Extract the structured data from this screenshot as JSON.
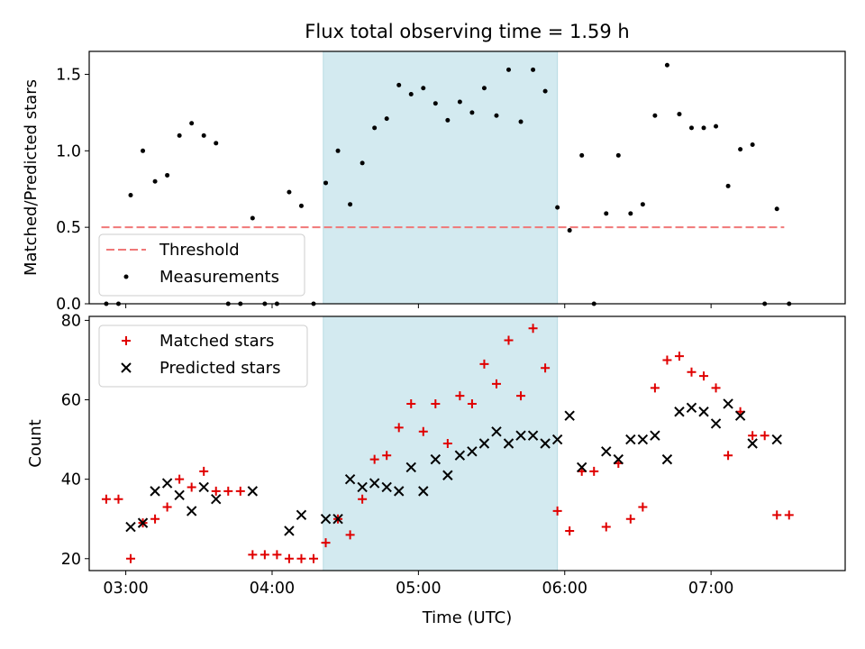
{
  "title": "Flux total observing time = 1.59 h",
  "colors": {
    "threshold": "#f07878",
    "measurement": "#000000",
    "matched": "#e00000",
    "predicted": "#000000",
    "highlight": "#d3eaf0"
  },
  "chart_data": [
    {
      "type": "scatter",
      "ylabel": "Matched/Predicted stars",
      "xlim": [
        "02:45",
        "07:55"
      ],
      "ylim": [
        0,
        1.65
      ],
      "yticks": [
        0.0,
        0.5,
        1.0,
        1.5
      ],
      "ytick_labels": [
        "0.0",
        "0.5",
        "1.0",
        "1.5"
      ],
      "highlight": {
        "start": "04:21",
        "end": "05:57"
      },
      "legend": {
        "placement": "lower-left",
        "entries": [
          "Threshold",
          "Measurements"
        ]
      },
      "threshold": {
        "name": "Threshold",
        "y": 0.5,
        "x_start": "02:50",
        "x_end": "07:30"
      },
      "series": [
        {
          "name": "Measurements",
          "points": [
            [
              "02:52",
              0
            ],
            [
              "02:57",
              0
            ],
            [
              "03:02",
              0.71
            ],
            [
              "03:07",
              1.0
            ],
            [
              "03:12",
              0.8
            ],
            [
              "03:17",
              0.84
            ],
            [
              "03:22",
              1.1
            ],
            [
              "03:27",
              1.18
            ],
            [
              "03:32",
              1.1
            ],
            [
              "03:37",
              1.05
            ],
            [
              "03:42",
              0
            ],
            [
              "03:47",
              0
            ],
            [
              "03:52",
              0.56
            ],
            [
              "03:57",
              0
            ],
            [
              "04:02",
              0
            ],
            [
              "04:07",
              0.73
            ],
            [
              "04:12",
              0.64
            ],
            [
              "04:17",
              0
            ],
            [
              "04:22",
              0.79
            ],
            [
              "04:27",
              1.0
            ],
            [
              "04:32",
              0.65
            ],
            [
              "04:37",
              0.92
            ],
            [
              "04:42",
              1.15
            ],
            [
              "04:47",
              1.21
            ],
            [
              "04:52",
              1.43
            ],
            [
              "04:57",
              1.37
            ],
            [
              "05:02",
              1.41
            ],
            [
              "05:07",
              1.31
            ],
            [
              "05:12",
              1.2
            ],
            [
              "05:17",
              1.32
            ],
            [
              "05:22",
              1.25
            ],
            [
              "05:27",
              1.41
            ],
            [
              "05:32",
              1.23
            ],
            [
              "05:37",
              1.53
            ],
            [
              "05:42",
              1.19
            ],
            [
              "05:47",
              1.53
            ],
            [
              "05:52",
              1.39
            ],
            [
              "05:57",
              0.63
            ],
            [
              "06:02",
              0.48
            ],
            [
              "06:07",
              0.97
            ],
            [
              "06:12",
              0
            ],
            [
              "06:17",
              0.59
            ],
            [
              "06:22",
              0.97
            ],
            [
              "06:27",
              0.59
            ],
            [
              "06:32",
              0.65
            ],
            [
              "06:37",
              1.23
            ],
            [
              "06:42",
              1.56
            ],
            [
              "06:47",
              1.24
            ],
            [
              "06:52",
              1.15
            ],
            [
              "06:57",
              1.15
            ],
            [
              "07:02",
              1.16
            ],
            [
              "07:07",
              0.77
            ],
            [
              "07:12",
              1.01
            ],
            [
              "07:17",
              1.04
            ],
            [
              "07:22",
              0
            ],
            [
              "07:27",
              0.62
            ],
            [
              "07:32",
              0
            ]
          ]
        }
      ]
    },
    {
      "type": "scatter",
      "xlabel": "Time (UTC)",
      "ylabel": "Count",
      "xlim": [
        "02:45",
        "07:55"
      ],
      "ylim": [
        17,
        81
      ],
      "xticks": [
        "03:00",
        "04:00",
        "05:00",
        "06:00",
        "07:00"
      ],
      "xtick_labels": [
        "03:00",
        "04:00",
        "05:00",
        "06:00",
        "07:00"
      ],
      "yticks": [
        20,
        40,
        60,
        80
      ],
      "ytick_labels": [
        "20",
        "40",
        "60",
        "80"
      ],
      "highlight": {
        "start": "04:21",
        "end": "05:57"
      },
      "legend": {
        "placement": "top-left",
        "entries": [
          "Matched stars",
          "Predicted stars"
        ]
      },
      "series": [
        {
          "name": "Matched stars",
          "marker": "plus",
          "points": [
            [
              "02:52",
              35
            ],
            [
              "02:57",
              35
            ],
            [
              "03:02",
              20
            ],
            [
              "03:07",
              29
            ],
            [
              "03:12",
              30
            ],
            [
              "03:17",
              33
            ],
            [
              "03:22",
              40
            ],
            [
              "03:27",
              38
            ],
            [
              "03:32",
              42
            ],
            [
              "03:37",
              37
            ],
            [
              "03:42",
              37
            ],
            [
              "03:47",
              37
            ],
            [
              "03:52",
              21
            ],
            [
              "03:57",
              21
            ],
            [
              "04:02",
              21
            ],
            [
              "04:07",
              20
            ],
            [
              "04:12",
              20
            ],
            [
              "04:17",
              20
            ],
            [
              "04:22",
              24
            ],
            [
              "04:27",
              30
            ],
            [
              "04:32",
              26
            ],
            [
              "04:37",
              35
            ],
            [
              "04:42",
              45
            ],
            [
              "04:47",
              46
            ],
            [
              "04:52",
              53
            ],
            [
              "04:57",
              59
            ],
            [
              "05:02",
              52
            ],
            [
              "05:07",
              59
            ],
            [
              "05:12",
              49
            ],
            [
              "05:17",
              61
            ],
            [
              "05:22",
              59
            ],
            [
              "05:27",
              69
            ],
            [
              "05:32",
              64
            ],
            [
              "05:37",
              75
            ],
            [
              "05:42",
              61
            ],
            [
              "05:47",
              78
            ],
            [
              "05:52",
              68
            ],
            [
              "05:57",
              32
            ],
            [
              "06:02",
              27
            ],
            [
              "06:07",
              42
            ],
            [
              "06:12",
              42
            ],
            [
              "06:17",
              28
            ],
            [
              "06:22",
              44
            ],
            [
              "06:27",
              30
            ],
            [
              "06:32",
              33
            ],
            [
              "06:37",
              63
            ],
            [
              "06:42",
              70
            ],
            [
              "06:47",
              71
            ],
            [
              "06:52",
              67
            ],
            [
              "06:57",
              66
            ],
            [
              "07:02",
              63
            ],
            [
              "07:07",
              46
            ],
            [
              "07:12",
              57
            ],
            [
              "07:17",
              51
            ],
            [
              "07:22",
              51
            ],
            [
              "07:27",
              31
            ],
            [
              "07:32",
              31
            ]
          ]
        },
        {
          "name": "Predicted stars",
          "marker": "x",
          "points": [
            [
              "03:02",
              28
            ],
            [
              "03:07",
              29
            ],
            [
              "03:12",
              37
            ],
            [
              "03:17",
              39
            ],
            [
              "03:22",
              36
            ],
            [
              "03:27",
              32
            ],
            [
              "03:32",
              38
            ],
            [
              "03:37",
              35
            ],
            [
              "03:52",
              37
            ],
            [
              "04:07",
              27
            ],
            [
              "04:12",
              31
            ],
            [
              "04:22",
              30
            ],
            [
              "04:27",
              30
            ],
            [
              "04:32",
              40
            ],
            [
              "04:37",
              38
            ],
            [
              "04:42",
              39
            ],
            [
              "04:47",
              38
            ],
            [
              "04:52",
              37
            ],
            [
              "04:57",
              43
            ],
            [
              "05:02",
              37
            ],
            [
              "05:07",
              45
            ],
            [
              "05:12",
              41
            ],
            [
              "05:17",
              46
            ],
            [
              "05:22",
              47
            ],
            [
              "05:27",
              49
            ],
            [
              "05:32",
              52
            ],
            [
              "05:37",
              49
            ],
            [
              "05:42",
              51
            ],
            [
              "05:47",
              51
            ],
            [
              "05:52",
              49
            ],
            [
              "05:57",
              50
            ],
            [
              "06:02",
              56
            ],
            [
              "06:07",
              43
            ],
            [
              "06:17",
              47
            ],
            [
              "06:22",
              45
            ],
            [
              "06:27",
              50
            ],
            [
              "06:32",
              50
            ],
            [
              "06:37",
              51
            ],
            [
              "06:42",
              45
            ],
            [
              "06:47",
              57
            ],
            [
              "06:52",
              58
            ],
            [
              "06:57",
              57
            ],
            [
              "07:02",
              54
            ],
            [
              "07:07",
              59
            ],
            [
              "07:12",
              56
            ],
            [
              "07:17",
              49
            ],
            [
              "07:27",
              50
            ]
          ]
        }
      ]
    }
  ]
}
